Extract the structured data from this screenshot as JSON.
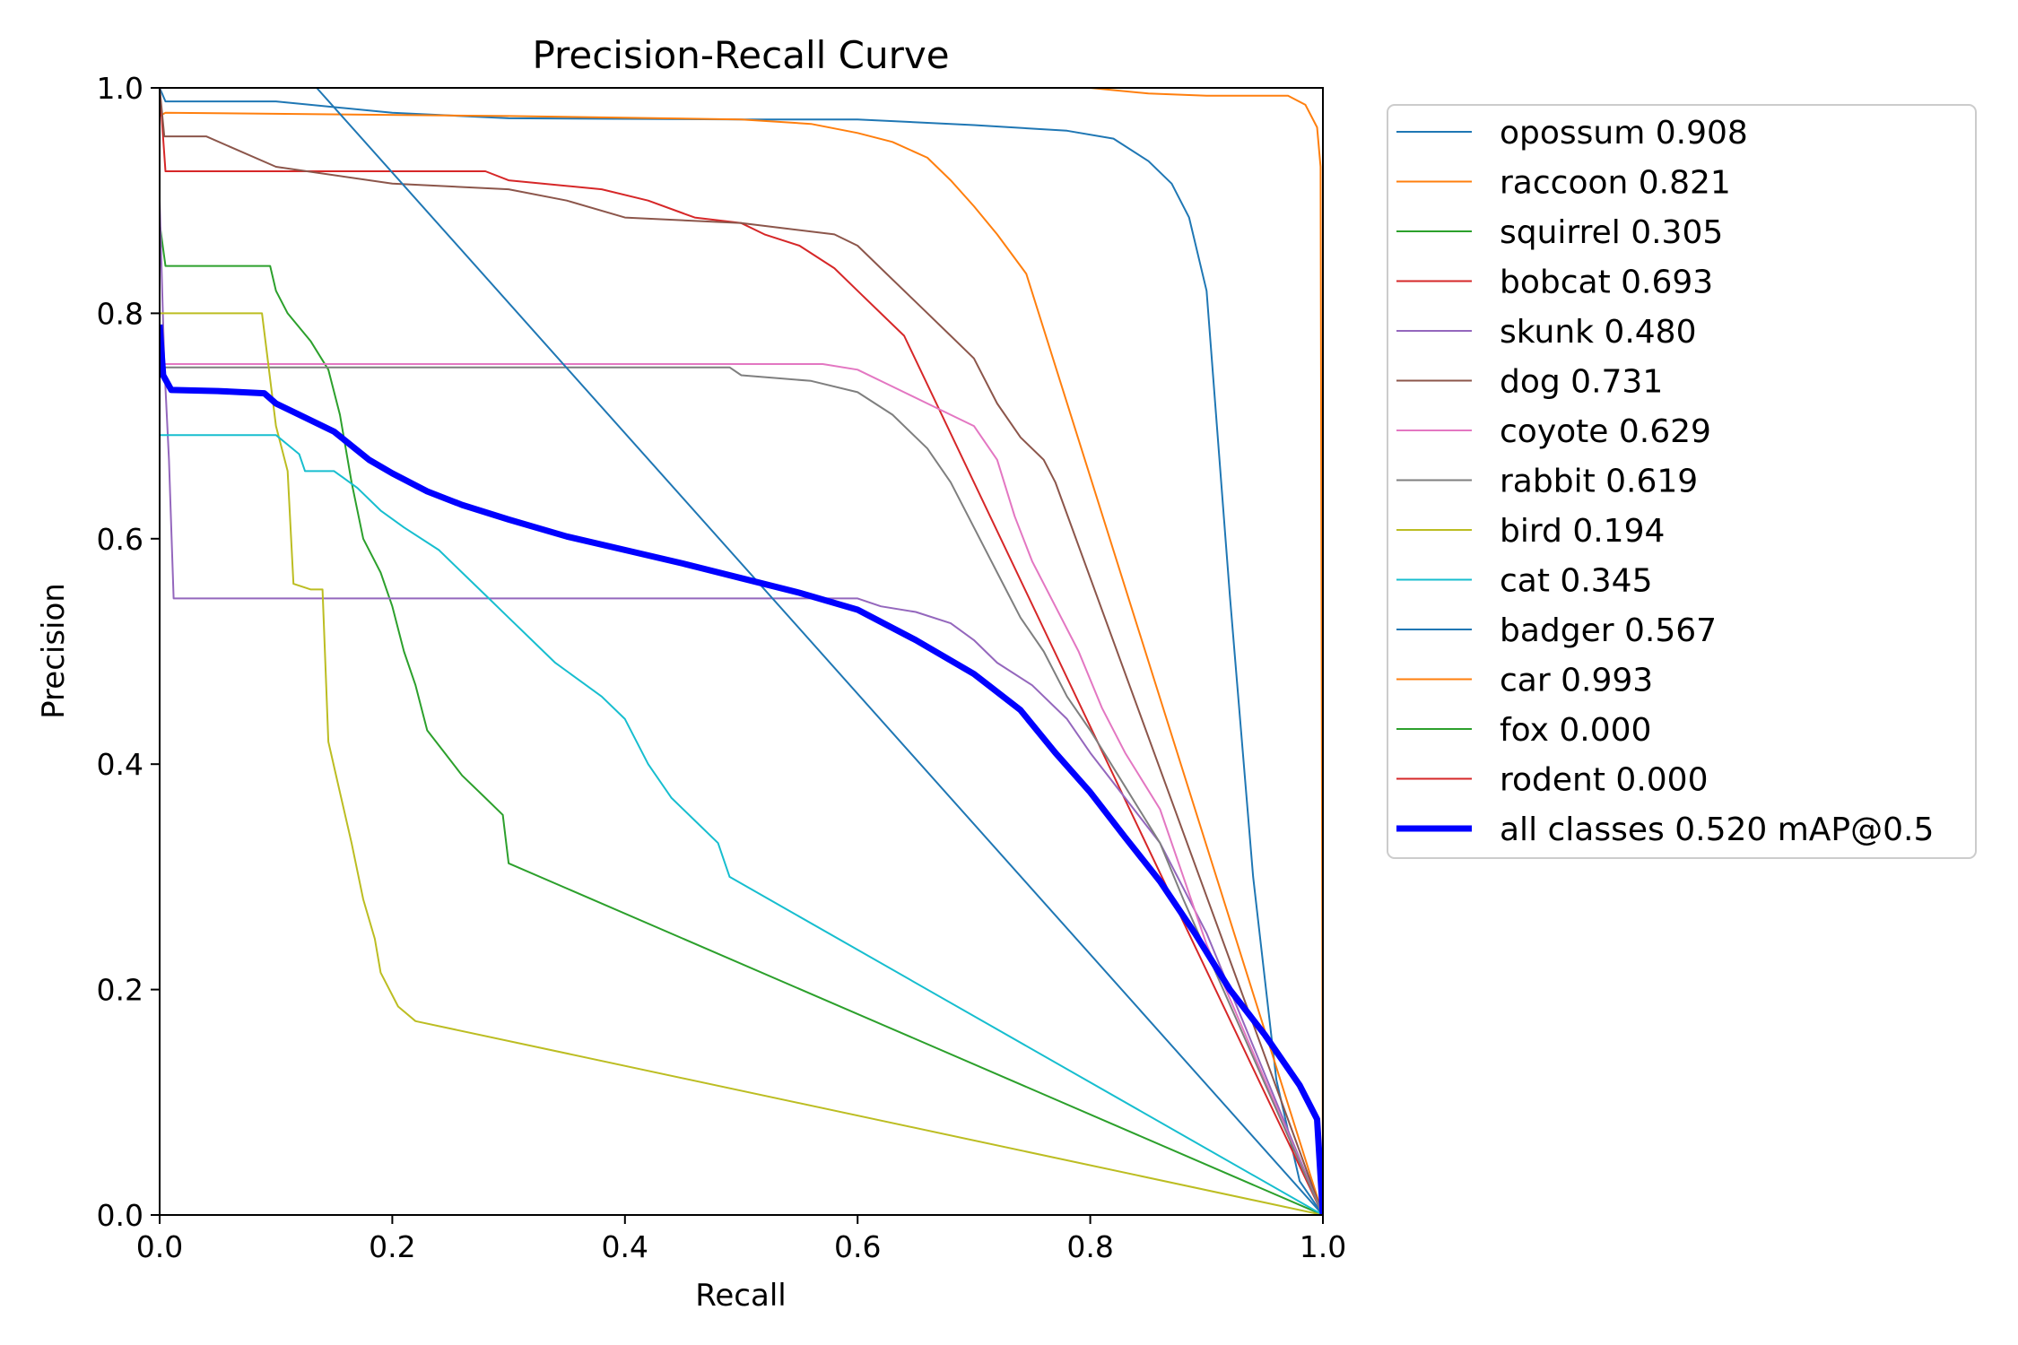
{
  "chart_data": {
    "type": "line",
    "title": "Precision-Recall Curve",
    "xlabel": "Recall",
    "ylabel": "Precision",
    "xlim": [
      0,
      1
    ],
    "ylim": [
      0,
      1
    ],
    "x_ticks": [
      "0.0",
      "0.2",
      "0.4",
      "0.6",
      "0.8",
      "1.0"
    ],
    "y_ticks": [
      "0.0",
      "0.2",
      "0.4",
      "0.6",
      "0.8",
      "1.0"
    ],
    "grid": false,
    "legend_position": "outside-right",
    "series": [
      {
        "name": "opossum 0.908",
        "color": "#1f77b4",
        "width": 2,
        "points": [
          [
            0,
            1.0
          ],
          [
            0.005,
            0.988
          ],
          [
            0.1,
            0.988
          ],
          [
            0.2,
            0.978
          ],
          [
            0.3,
            0.973
          ],
          [
            0.5,
            0.972
          ],
          [
            0.6,
            0.972
          ],
          [
            0.7,
            0.967
          ],
          [
            0.78,
            0.962
          ],
          [
            0.82,
            0.955
          ],
          [
            0.85,
            0.935
          ],
          [
            0.87,
            0.915
          ],
          [
            0.885,
            0.885
          ],
          [
            0.9,
            0.82
          ],
          [
            0.92,
            0.55
          ],
          [
            0.94,
            0.3
          ],
          [
            0.96,
            0.12
          ],
          [
            0.98,
            0.03
          ],
          [
            1.0,
            0.0
          ]
        ]
      },
      {
        "name": "raccoon 0.821",
        "color": "#ff7f0e",
        "width": 2,
        "points": [
          [
            0,
            0.975
          ],
          [
            0.005,
            0.978
          ],
          [
            0.3,
            0.975
          ],
          [
            0.5,
            0.972
          ],
          [
            0.56,
            0.968
          ],
          [
            0.6,
            0.96
          ],
          [
            0.63,
            0.952
          ],
          [
            0.66,
            0.938
          ],
          [
            0.68,
            0.918
          ],
          [
            0.7,
            0.895
          ],
          [
            0.72,
            0.87
          ],
          [
            0.745,
            0.835
          ],
          [
            1.0,
            0.0
          ]
        ]
      },
      {
        "name": "squirrel 0.305",
        "color": "#2ca02c",
        "width": 2,
        "points": [
          [
            0,
            0.88
          ],
          [
            0.005,
            0.842
          ],
          [
            0.095,
            0.842
          ],
          [
            0.1,
            0.82
          ],
          [
            0.11,
            0.8
          ],
          [
            0.13,
            0.775
          ],
          [
            0.145,
            0.75
          ],
          [
            0.155,
            0.71
          ],
          [
            0.165,
            0.65
          ],
          [
            0.175,
            0.6
          ],
          [
            0.19,
            0.57
          ],
          [
            0.2,
            0.54
          ],
          [
            0.21,
            0.5
          ],
          [
            0.22,
            0.47
          ],
          [
            0.23,
            0.43
          ],
          [
            0.245,
            0.41
          ],
          [
            0.26,
            0.39
          ],
          [
            0.28,
            0.37
          ],
          [
            0.295,
            0.355
          ],
          [
            0.3,
            0.312
          ],
          [
            1.0,
            0.0
          ]
        ]
      },
      {
        "name": "bobcat 0.693",
        "color": "#d62728",
        "width": 2,
        "points": [
          [
            0,
            1.0
          ],
          [
            0.005,
            0.926
          ],
          [
            0.28,
            0.926
          ],
          [
            0.3,
            0.918
          ],
          [
            0.38,
            0.91
          ],
          [
            0.42,
            0.9
          ],
          [
            0.46,
            0.885
          ],
          [
            0.5,
            0.88
          ],
          [
            0.52,
            0.87
          ],
          [
            0.55,
            0.86
          ],
          [
            0.58,
            0.84
          ],
          [
            0.6,
            0.82
          ],
          [
            0.62,
            0.8
          ],
          [
            0.64,
            0.78
          ],
          [
            1.0,
            0.0
          ]
        ]
      },
      {
        "name": "skunk 0.480",
        "color": "#9467bd",
        "width": 2,
        "points": [
          [
            0,
            0.9
          ],
          [
            0.004,
            0.755
          ],
          [
            0.008,
            0.67
          ],
          [
            0.012,
            0.547
          ],
          [
            0.6,
            0.547
          ],
          [
            0.62,
            0.54
          ],
          [
            0.65,
            0.535
          ],
          [
            0.68,
            0.525
          ],
          [
            0.7,
            0.51
          ],
          [
            0.72,
            0.49
          ],
          [
            0.75,
            0.47
          ],
          [
            0.78,
            0.44
          ],
          [
            0.8,
            0.41
          ],
          [
            0.83,
            0.37
          ],
          [
            0.86,
            0.33
          ],
          [
            0.88,
            0.29
          ],
          [
            0.9,
            0.25
          ],
          [
            1.0,
            0.0
          ]
        ]
      },
      {
        "name": "dog 0.731",
        "color": "#8c564b",
        "width": 2,
        "points": [
          [
            0,
            1.0
          ],
          [
            0.004,
            0.957
          ],
          [
            0.04,
            0.957
          ],
          [
            0.1,
            0.93
          ],
          [
            0.2,
            0.915
          ],
          [
            0.3,
            0.91
          ],
          [
            0.35,
            0.9
          ],
          [
            0.4,
            0.885
          ],
          [
            0.5,
            0.88
          ],
          [
            0.58,
            0.87
          ],
          [
            0.6,
            0.86
          ],
          [
            0.62,
            0.84
          ],
          [
            0.65,
            0.81
          ],
          [
            0.68,
            0.78
          ],
          [
            0.7,
            0.76
          ],
          [
            0.72,
            0.72
          ],
          [
            0.74,
            0.69
          ],
          [
            0.76,
            0.67
          ],
          [
            0.77,
            0.65
          ],
          [
            1.0,
            0.0
          ]
        ]
      },
      {
        "name": "coyote 0.629",
        "color": "#e377c2",
        "width": 2,
        "points": [
          [
            0,
            0.755
          ],
          [
            0.57,
            0.755
          ],
          [
            0.6,
            0.75
          ],
          [
            0.63,
            0.735
          ],
          [
            0.66,
            0.72
          ],
          [
            0.7,
            0.7
          ],
          [
            0.72,
            0.67
          ],
          [
            0.735,
            0.62
          ],
          [
            0.75,
            0.58
          ],
          [
            0.77,
            0.54
          ],
          [
            0.79,
            0.5
          ],
          [
            0.81,
            0.45
          ],
          [
            0.83,
            0.41
          ],
          [
            0.86,
            0.36
          ],
          [
            0.88,
            0.3
          ],
          [
            0.9,
            0.24
          ],
          [
            1.0,
            0.0
          ]
        ]
      },
      {
        "name": "rabbit 0.619",
        "color": "#7f7f7f",
        "width": 2,
        "points": [
          [
            0,
            0.752
          ],
          [
            0.49,
            0.752
          ],
          [
            0.5,
            0.745
          ],
          [
            0.56,
            0.74
          ],
          [
            0.6,
            0.73
          ],
          [
            0.63,
            0.71
          ],
          [
            0.66,
            0.68
          ],
          [
            0.68,
            0.65
          ],
          [
            0.7,
            0.61
          ],
          [
            0.72,
            0.57
          ],
          [
            0.74,
            0.53
          ],
          [
            0.76,
            0.5
          ],
          [
            0.78,
            0.46
          ],
          [
            0.8,
            0.43
          ],
          [
            0.83,
            0.38
          ],
          [
            0.86,
            0.33
          ],
          [
            0.88,
            0.28
          ],
          [
            1.0,
            0.0
          ]
        ]
      },
      {
        "name": "bird 0.194",
        "color": "#bcbd22",
        "width": 2,
        "points": [
          [
            0,
            0.8
          ],
          [
            0.088,
            0.8
          ],
          [
            0.1,
            0.7
          ],
          [
            0.11,
            0.66
          ],
          [
            0.115,
            0.56
          ],
          [
            0.13,
            0.555
          ],
          [
            0.14,
            0.555
          ],
          [
            0.145,
            0.42
          ],
          [
            0.155,
            0.375
          ],
          [
            0.165,
            0.33
          ],
          [
            0.175,
            0.28
          ],
          [
            0.185,
            0.245
          ],
          [
            0.19,
            0.215
          ],
          [
            0.205,
            0.185
          ],
          [
            0.22,
            0.172
          ],
          [
            1.0,
            0.0
          ]
        ]
      },
      {
        "name": "cat 0.345",
        "color": "#17becf",
        "width": 2,
        "points": [
          [
            0,
            0.692
          ],
          [
            0.1,
            0.692
          ],
          [
            0.12,
            0.675
          ],
          [
            0.125,
            0.66
          ],
          [
            0.15,
            0.66
          ],
          [
            0.17,
            0.645
          ],
          [
            0.19,
            0.625
          ],
          [
            0.21,
            0.61
          ],
          [
            0.24,
            0.59
          ],
          [
            0.26,
            0.57
          ],
          [
            0.28,
            0.55
          ],
          [
            0.3,
            0.53
          ],
          [
            0.32,
            0.51
          ],
          [
            0.34,
            0.49
          ],
          [
            0.38,
            0.46
          ],
          [
            0.4,
            0.44
          ],
          [
            0.42,
            0.4
          ],
          [
            0.44,
            0.37
          ],
          [
            0.46,
            0.35
          ],
          [
            0.48,
            0.33
          ],
          [
            0.49,
            0.3
          ],
          [
            1.0,
            0.0
          ]
        ]
      },
      {
        "name": "badger 0.567",
        "color": "#1f77b4",
        "width": 2,
        "points": [
          [
            0.135,
            1.0
          ],
          [
            1.0,
            0.0
          ]
        ]
      },
      {
        "name": "car 0.993",
        "color": "#ff7f0e",
        "width": 2,
        "points": [
          [
            0.64,
            1.0
          ],
          [
            0.8,
            1.0
          ],
          [
            0.85,
            0.995
          ],
          [
            0.9,
            0.993
          ],
          [
            0.97,
            0.993
          ],
          [
            0.985,
            0.985
          ],
          [
            0.995,
            0.965
          ],
          [
            0.998,
            0.93
          ],
          [
            1.0,
            0.0
          ]
        ]
      },
      {
        "name": "fox 0.000",
        "color": "#2ca02c",
        "width": 2,
        "points": []
      },
      {
        "name": "rodent 0.000",
        "color": "#d62728",
        "width": 2,
        "points": []
      },
      {
        "name": "all classes 0.520 mAP@0.5",
        "color": "#0000ff",
        "width": 7,
        "points": [
          [
            0,
            0.79
          ],
          [
            0.003,
            0.745
          ],
          [
            0.01,
            0.732
          ],
          [
            0.05,
            0.731
          ],
          [
            0.09,
            0.729
          ],
          [
            0.1,
            0.72
          ],
          [
            0.12,
            0.71
          ],
          [
            0.15,
            0.695
          ],
          [
            0.18,
            0.67
          ],
          [
            0.2,
            0.658
          ],
          [
            0.23,
            0.642
          ],
          [
            0.26,
            0.63
          ],
          [
            0.3,
            0.617
          ],
          [
            0.35,
            0.602
          ],
          [
            0.4,
            0.59
          ],
          [
            0.45,
            0.578
          ],
          [
            0.5,
            0.565
          ],
          [
            0.55,
            0.552
          ],
          [
            0.6,
            0.537
          ],
          [
            0.65,
            0.51
          ],
          [
            0.7,
            0.48
          ],
          [
            0.74,
            0.448
          ],
          [
            0.77,
            0.41
          ],
          [
            0.8,
            0.375
          ],
          [
            0.83,
            0.335
          ],
          [
            0.86,
            0.296
          ],
          [
            0.89,
            0.25
          ],
          [
            0.92,
            0.2
          ],
          [
            0.95,
            0.16
          ],
          [
            0.98,
            0.115
          ],
          [
            0.995,
            0.085
          ],
          [
            1.0,
            0.0
          ]
        ]
      }
    ]
  }
}
